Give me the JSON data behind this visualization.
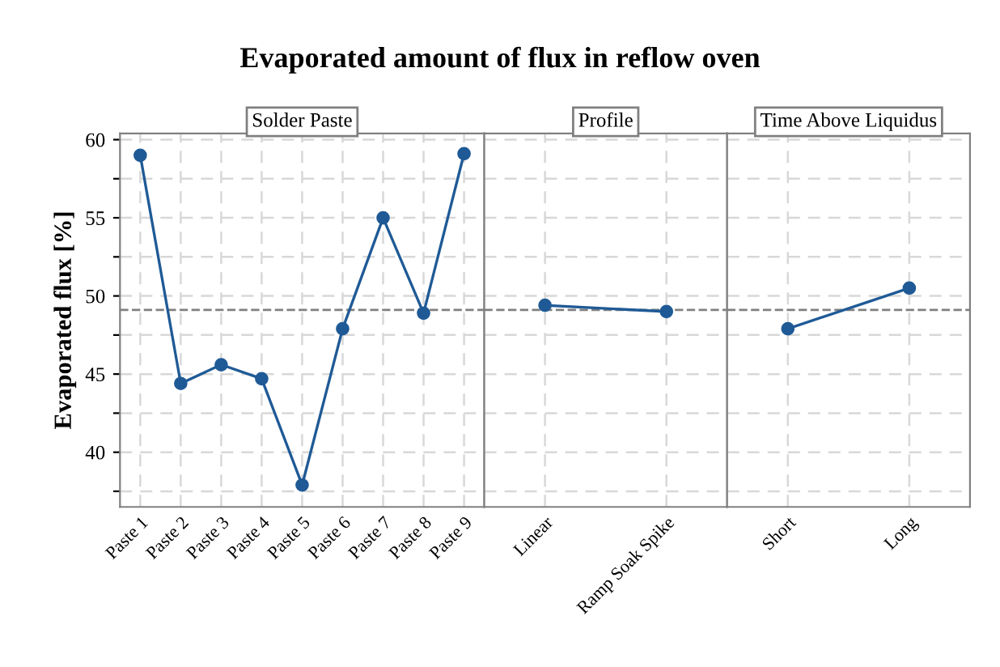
{
  "chart_data": [
    {
      "type": "line",
      "title": "Evaporated amount of flux in reflow oven",
      "subtitle": "Solder Paste",
      "ylabel": "Evaporated flux [%]",
      "categories": [
        "Paste 1",
        "Paste 2",
        "Paste 3",
        "Paste 4",
        "Paste 5",
        "Paste 6",
        "Paste 7",
        "Paste 8",
        "Paste 9"
      ],
      "series": [
        {
          "color": "#1f5a96",
          "values": [
            59.0,
            44.4,
            45.6,
            44.7,
            37.9,
            47.9,
            55.0,
            48.9,
            59.1
          ]
        }
      ],
      "ylim": [
        36.5,
        60.4
      ],
      "yticks": [
        {
          "value": 37.5,
          "label": null
        },
        40,
        {
          "value": 42.5,
          "label": null
        },
        45,
        {
          "value": 47.5,
          "label": null
        },
        50,
        {
          "value": 52.5,
          "label": null
        },
        55,
        {
          "value": 57.5,
          "label": null
        },
        60
      ],
      "ref_lines": [
        {
          "axis": "y",
          "value": 49.1,
          "color": "#808080",
          "line_style": "dashed"
        }
      ],
      "grid": true,
      "marker": "circle",
      "line_style": "solid"
    },
    {
      "type": "line",
      "subtitle": "Profile",
      "categories": [
        "Linear",
        "Ramp Soak Spike"
      ],
      "series": [
        {
          "color": "#1f5a96",
          "values": [
            49.4,
            49.0
          ]
        }
      ],
      "ylim": [
        36.5,
        60.4
      ],
      "yticks": [
        {
          "value": 37.5,
          "label": null
        },
        40,
        {
          "value": 42.5,
          "label": null
        },
        45,
        {
          "value": 47.5,
          "label": null
        },
        50,
        {
          "value": 52.5,
          "label": null
        },
        55,
        {
          "value": 57.5,
          "label": null
        },
        60
      ],
      "tick_labels": "x",
      "ref_lines": [
        {
          "axis": "y",
          "value": 49.1,
          "color": "#808080",
          "line_style": "dashed"
        }
      ],
      "grid": true,
      "marker": "circle",
      "line_style": "solid"
    },
    {
      "type": "line",
      "subtitle": "Time Above Liquidus",
      "categories": [
        "Short",
        "Long"
      ],
      "series": [
        {
          "color": "#1f5a96",
          "values": [
            47.9,
            50.5
          ]
        }
      ],
      "ylim": [
        36.5,
        60.4
      ],
      "yticks": [
        {
          "value": 37.5,
          "label": null
        },
        40,
        {
          "value": 42.5,
          "label": null
        },
        45,
        {
          "value": 47.5,
          "label": null
        },
        50,
        {
          "value": 52.5,
          "label": null
        },
        55,
        {
          "value": 57.5,
          "label": null
        },
        60
      ],
      "tick_labels": "x",
      "ref_lines": [
        {
          "axis": "y",
          "value": 49.1,
          "color": "#808080",
          "line_style": "dashed"
        }
      ],
      "grid": true,
      "marker": "circle",
      "line_style": "solid"
    }
  ]
}
